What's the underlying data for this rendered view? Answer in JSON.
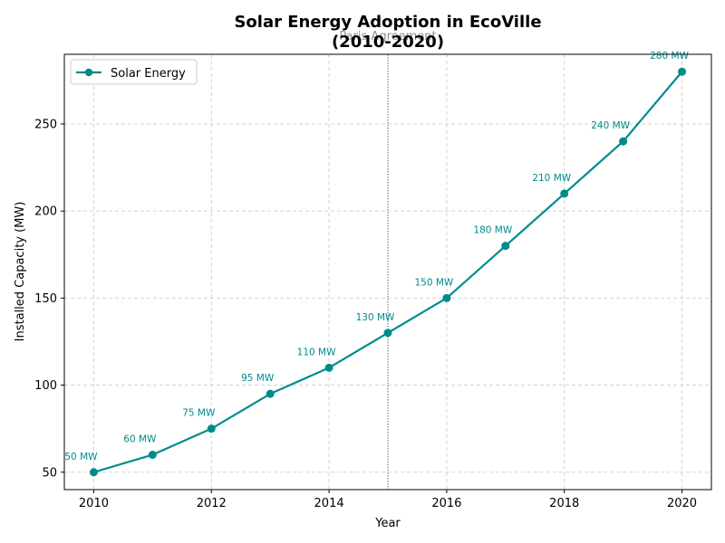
{
  "chart_data": {
    "type": "line",
    "title_line1": "Solar Energy Adoption in EcoVille",
    "title_line2": "(2010-2020)",
    "xlabel": "Year",
    "ylabel": "Installed Capacity (MW)",
    "xlim": [
      2009.5,
      2020.5
    ],
    "ylim": [
      40,
      290
    ],
    "xticks": [
      2010,
      2012,
      2014,
      2016,
      2018,
      2020
    ],
    "yticks": [
      50,
      100,
      150,
      200,
      250
    ],
    "grid": true,
    "legend_position": "upper-left",
    "series": [
      {
        "name": "Solar Energy",
        "color": "#008b8b",
        "marker": "circle",
        "x": [
          2010,
          2011,
          2012,
          2013,
          2014,
          2015,
          2016,
          2017,
          2018,
          2019,
          2020
        ],
        "values": [
          50,
          60,
          75,
          95,
          110,
          130,
          150,
          180,
          210,
          240,
          280
        ],
        "data_labels": [
          "50 MW",
          "60 MW",
          "75 MW",
          "95 MW",
          "110 MW",
          "130 MW",
          "150 MW",
          "180 MW",
          "210 MW",
          "240 MW",
          "280 MW"
        ]
      }
    ],
    "annotations": [
      {
        "x": 2015,
        "label": "Paris Agreement",
        "style": "dotted-vertical-line",
        "color": "#808080"
      }
    ]
  }
}
